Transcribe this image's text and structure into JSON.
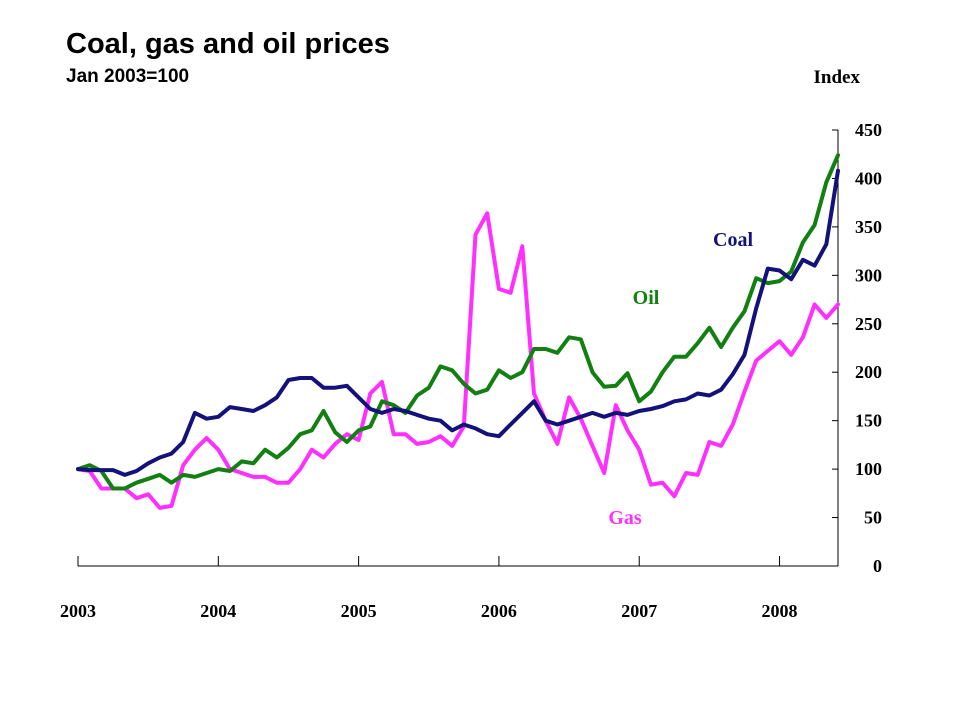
{
  "chart_data": {
    "type": "line",
    "title": "Coal, gas and oil prices",
    "subtitle": "Jan 2003=100",
    "ylabel": "Index",
    "xlabel": "",
    "ylim": [
      0,
      450
    ],
    "yticks": [
      0,
      50,
      100,
      150,
      200,
      250,
      300,
      350,
      400,
      450
    ],
    "xlim": [
      "2003-01",
      "2008-06"
    ],
    "xtick_labels": [
      "2003",
      "2004",
      "2005",
      "2006",
      "2007",
      "2008"
    ],
    "grid": false,
    "legend": "inline labels",
    "series": [
      {
        "name": "Coal",
        "color": "#14127a",
        "values": [
          100,
          99,
          99,
          99,
          94,
          98,
          106,
          112,
          116,
          128,
          158,
          152,
          154,
          164,
          162,
          160,
          166,
          174,
          192,
          194,
          194,
          184,
          184,
          186,
          174,
          162,
          158,
          162,
          160,
          156,
          152,
          150,
          140,
          146,
          142,
          136,
          134,
          146,
          158,
          170,
          150,
          146,
          150,
          154,
          158,
          154,
          158,
          156,
          160,
          162,
          165,
          170,
          172,
          178,
          176,
          182,
          198,
          218,
          266,
          307,
          305,
          296,
          316,
          310,
          332,
          408
        ]
      },
      {
        "name": "Oil",
        "color": "#118011",
        "values": [
          100,
          104,
          98,
          80,
          80,
          86,
          90,
          94,
          86,
          94,
          92,
          96,
          100,
          98,
          108,
          106,
          120,
          112,
          122,
          136,
          140,
          160,
          138,
          128,
          140,
          144,
          170,
          166,
          158,
          176,
          184,
          206,
          202,
          188,
          178,
          182,
          202,
          194,
          200,
          224,
          224,
          220,
          236,
          234,
          200,
          185,
          186,
          199,
          170,
          180,
          200,
          216,
          216,
          230,
          246,
          226,
          246,
          263,
          297,
          292,
          294,
          304,
          334,
          352,
          396,
          424
        ]
      },
      {
        "name": "Gas",
        "color": "#ff30ff",
        "values": [
          100,
          98,
          80,
          80,
          80,
          70,
          74,
          60,
          62,
          104,
          120,
          132,
          120,
          100,
          96,
          92,
          92,
          86,
          86,
          100,
          120,
          112,
          126,
          136,
          130,
          178,
          190,
          136,
          136,
          126,
          128,
          134,
          124,
          144,
          342,
          364,
          286,
          282,
          330,
          178,
          150,
          126,
          174,
          152,
          124,
          96,
          166,
          140,
          120,
          84,
          86,
          72,
          96,
          94,
          128,
          124,
          146,
          180,
          212,
          222,
          232,
          218,
          236,
          270,
          256,
          270
        ]
      }
    ]
  }
}
